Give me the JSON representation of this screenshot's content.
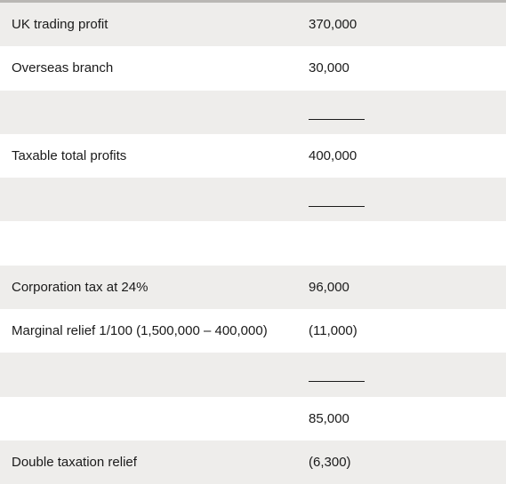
{
  "rows": [
    {
      "label": "UK trading profit",
      "value": "370,000",
      "rule": false
    },
    {
      "label": "Overseas branch",
      "value": "30,000",
      "rule": false
    },
    {
      "label": "",
      "value": "",
      "rule": true
    },
    {
      "label": "Taxable total profits",
      "value": "400,000",
      "rule": false
    },
    {
      "label": "",
      "value": "",
      "rule": true
    },
    {
      "label": "",
      "value": "",
      "rule": false
    },
    {
      "label": "Corporation tax at 24%",
      "value": "96,000",
      "rule": false
    },
    {
      "label": "Marginal relief 1/100 (1,500,000 – 400,000)",
      "value": "(11,000)",
      "rule": false
    },
    {
      "label": "",
      "value": "",
      "rule": true
    },
    {
      "label": "",
      "value": "85,000",
      "rule": false
    },
    {
      "label": "Double taxation relief",
      "value": "(6,300)",
      "rule": false
    }
  ]
}
